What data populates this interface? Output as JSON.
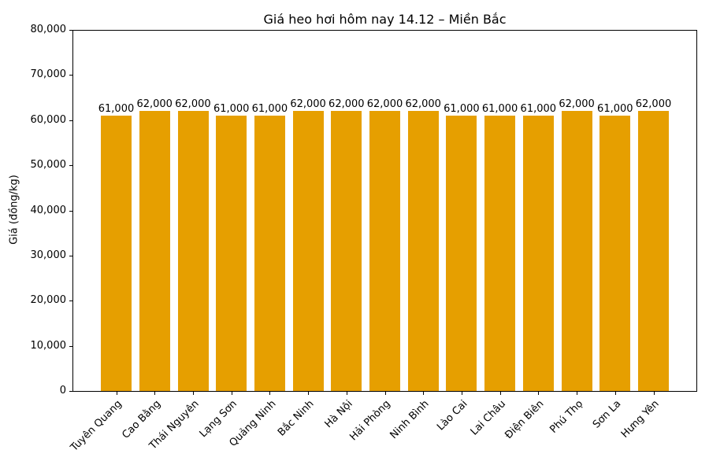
{
  "chart_data": {
    "type": "bar",
    "title": "Giá heo hơi hôm nay 14.12 – Miền Bắc",
    "xlabel": "",
    "ylabel": "Giá (đồng/kg)",
    "categories": [
      "Tuyên Quang",
      "Cao Bằng",
      "Thái Nguyên",
      "Lạng Sơn",
      "Quảng Ninh",
      "Bắc Ninh",
      "Hà Nội",
      "Hải Phòng",
      "Ninh Bình",
      "Lào Cai",
      "Lai Châu",
      "Điện Biên",
      "Phú Thọ",
      "Sơn La",
      "Hưng Yên"
    ],
    "values": [
      61000,
      62000,
      62000,
      61000,
      61000,
      62000,
      62000,
      62000,
      62000,
      61000,
      61000,
      61000,
      62000,
      61000,
      62000
    ],
    "value_labels": [
      "61,000",
      "62,000",
      "62,000",
      "61,000",
      "61,000",
      "62,000",
      "62,000",
      "62,000",
      "62,000",
      "61,000",
      "61,000",
      "61,000",
      "62,000",
      "61,000",
      "62,000"
    ],
    "ylim": [
      0,
      80000
    ],
    "yticks": [
      0,
      10000,
      20000,
      30000,
      40000,
      50000,
      60000,
      70000,
      80000
    ],
    "ytick_labels": [
      "0",
      "10,000",
      "20,000",
      "30,000",
      "40,000",
      "50,000",
      "60,000",
      "70,000",
      "80,000"
    ],
    "bar_color": "#E69F00",
    "grid": false,
    "legend": "none",
    "xtick_rotation": 45
  }
}
